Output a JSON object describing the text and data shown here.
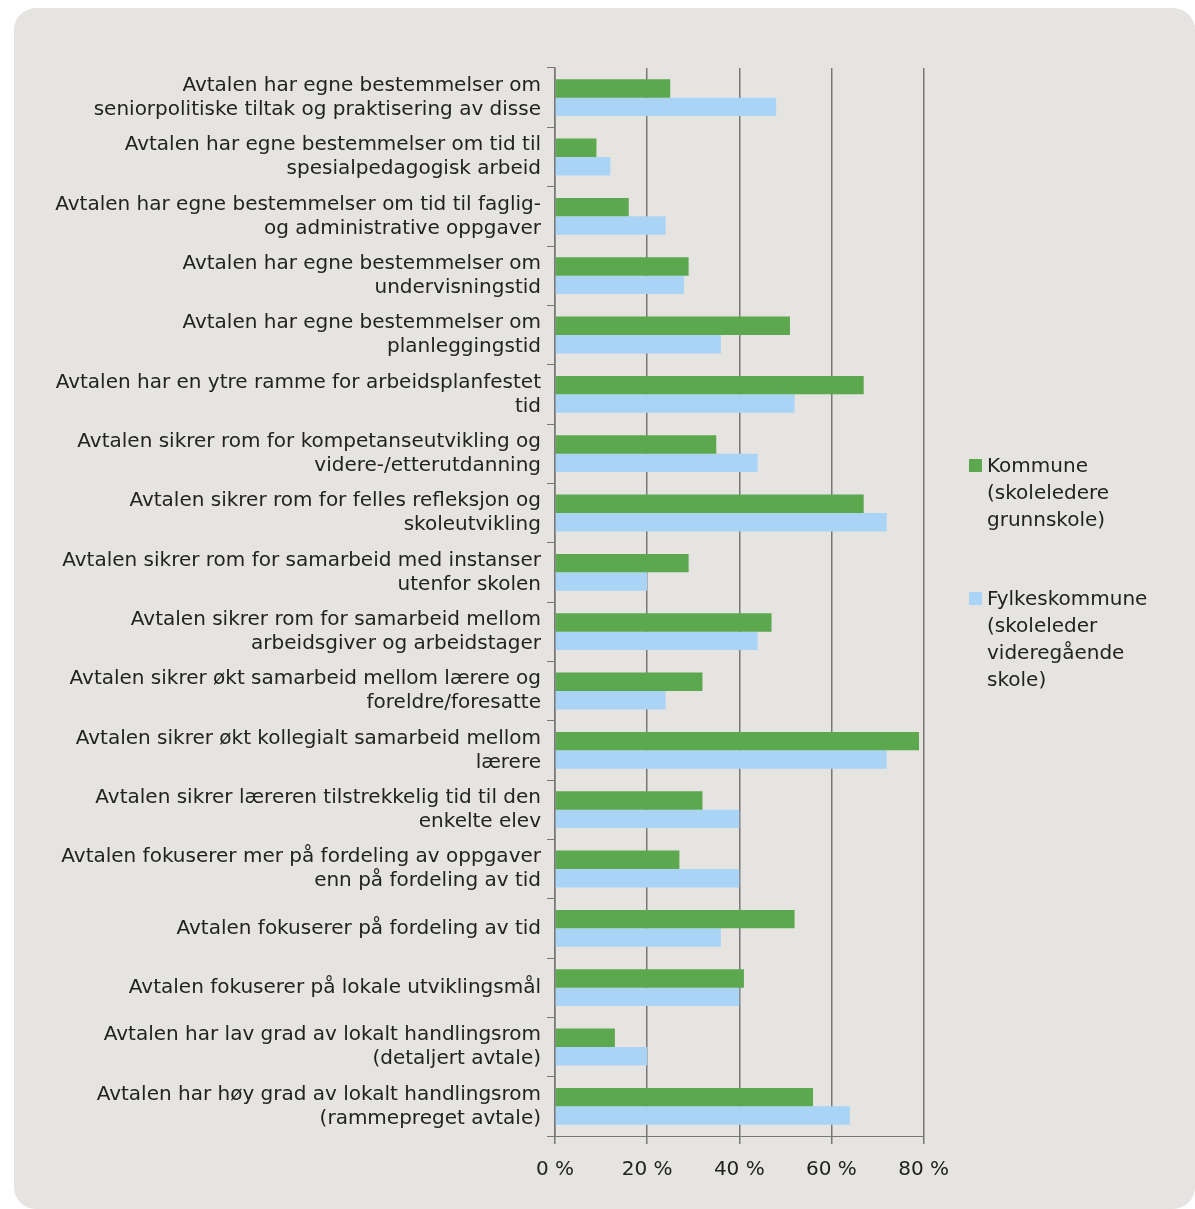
{
  "chart_data": {
    "type": "bar",
    "orientation": "horizontal",
    "categories": [
      "Avtalen har egne bestemmelser om seniorpolitiske tiltak og praktisering av disse",
      "Avtalen har egne bestemmelser om tid til spesialpedagogisk arbeid",
      "Avtalen har egne bestemmelser om tid til faglig- og administrative oppgaver",
      "Avtalen har egne bestemmelser om undervisningstid",
      "Avtalen har egne bestemmelser om planleggingstid",
      "Avtalen har en ytre ramme for arbeidsplanfestet tid",
      "Avtalen sikrer rom for kompetanseutvikling og videre-/etterutdanning",
      "Avtalen sikrer rom for felles refleksjon og skoleutvikling",
      "Avtalen sikrer rom for samarbeid med instanser utenfor skolen",
      "Avtalen sikrer rom for samarbeid mellom arbeidsgiver og arbeidstager",
      "Avtalen sikrer økt samarbeid mellom lærere og foreldre/foresatte",
      "Avtalen sikrer økt kollegialt samarbeid mellom lærere",
      "Avtalen sikrer læreren tilstrekkelig tid til den enkelte elev",
      "Avtalen fokuserer mer på fordeling av oppgaver enn på fordeling av tid",
      "Avtalen fokuserer på fordeling av tid",
      "Avtalen fokuserer på lokale utviklingsmål",
      "Avtalen har lav grad av lokalt handlingsrom (detaljert avtale)",
      "Avtalen har høy grad av lokalt handlingsrom (rammepreget avtale)"
    ],
    "series": [
      {
        "name": "Kommune (skoleledere grunnskole)",
        "color": "#5ba84f",
        "values": [
          25,
          9,
          16,
          29,
          51,
          67,
          35,
          67,
          29,
          47,
          32,
          79,
          32,
          27,
          52,
          41,
          13,
          56
        ]
      },
      {
        "name": "Fylkeskommune (skoleleder videregående skole)",
        "color": "#a9d4f5",
        "values": [
          48,
          12,
          24,
          28,
          36,
          52,
          44,
          72,
          20,
          44,
          24,
          72,
          40,
          40,
          36,
          40,
          20,
          64
        ]
      }
    ],
    "xlim": [
      0,
      80
    ],
    "xticks": [
      {
        "value": 0,
        "label": "0 %"
      },
      {
        "value": 20,
        "label": "20 %"
      },
      {
        "value": 40,
        "label": "40 %"
      },
      {
        "value": 60,
        "label": "60 %"
      },
      {
        "value": 80,
        "label": "80 %"
      }
    ],
    "grid": "x",
    "legend": "right"
  }
}
